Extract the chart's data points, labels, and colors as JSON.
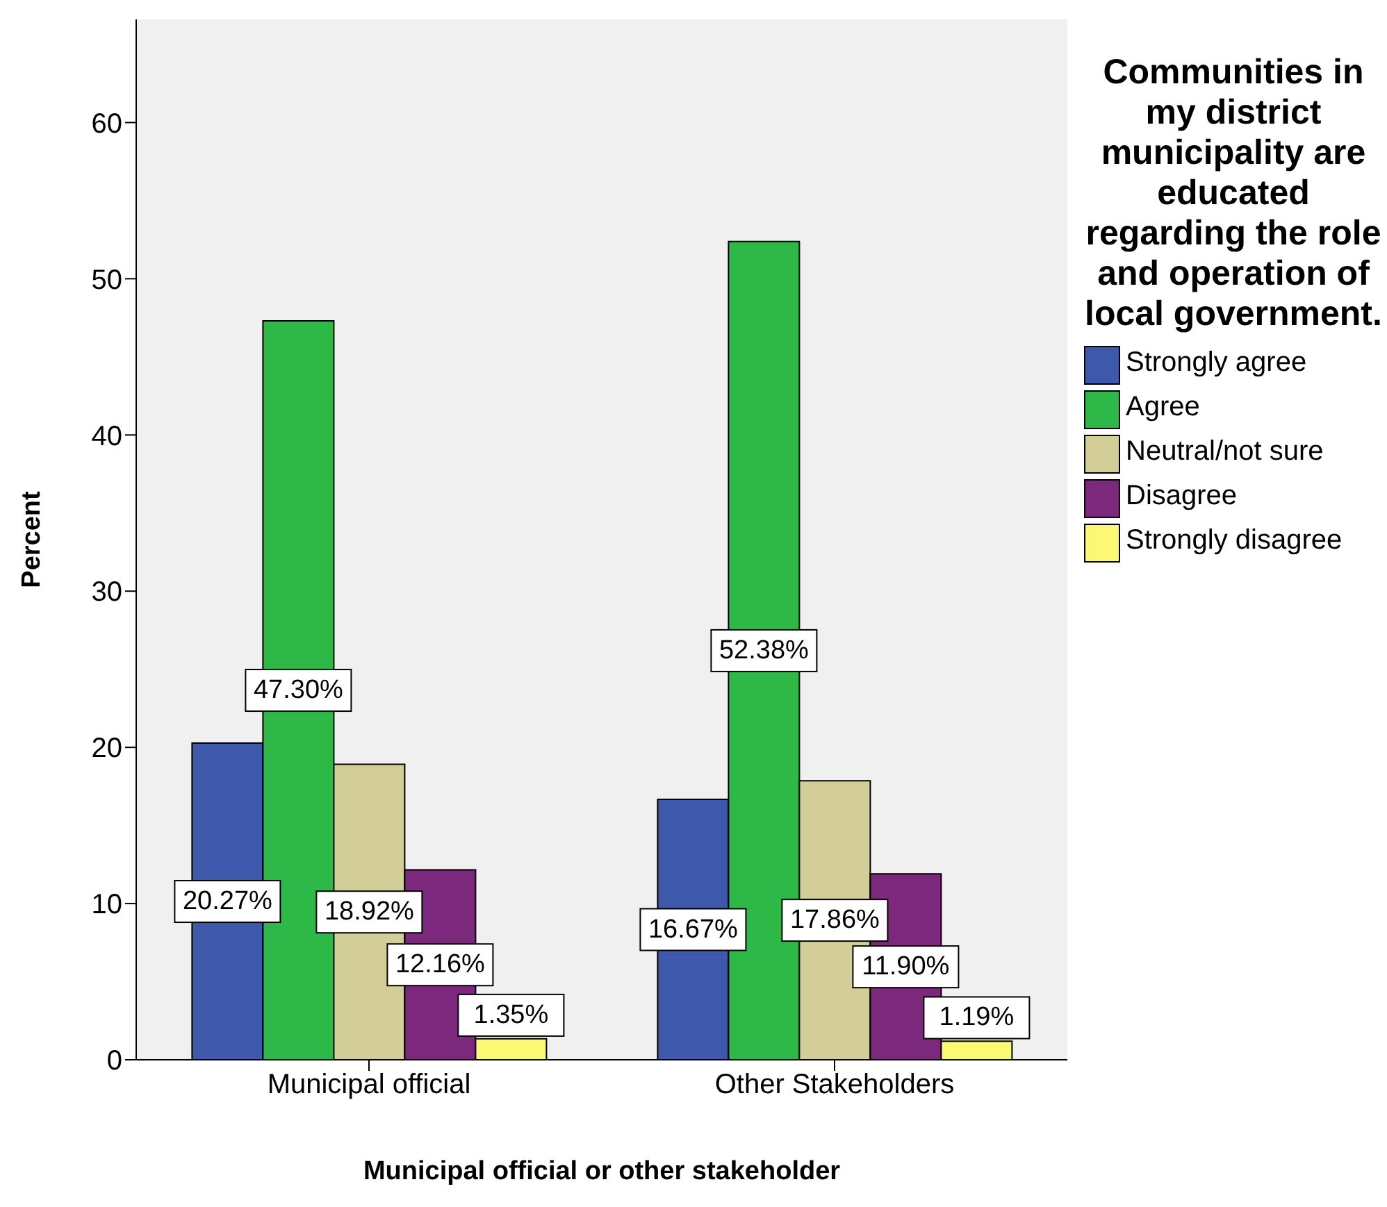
{
  "chart_data": {
    "type": "bar",
    "xlabel": "Municipal official or other stakeholder",
    "ylabel": "Percent",
    "legend_title": "Communities in my district municipality are educated regarding the role and operation of local government.",
    "categories": [
      "Municipal official",
      "Other Stakeholders"
    ],
    "series": [
      {
        "name": "Strongly agree",
        "color": "#3e58ac",
        "values": [
          20.27,
          16.67
        ],
        "value_labels": [
          "20.27%",
          "16.67%"
        ]
      },
      {
        "name": "Agree",
        "color": "#2eb848",
        "values": [
          47.3,
          52.38
        ],
        "value_labels": [
          "47.30%",
          "52.38%"
        ]
      },
      {
        "name": "Neutral/not sure",
        "color": "#d3ce97",
        "values": [
          18.92,
          17.86
        ],
        "value_labels": [
          "18.92%",
          "17.86%"
        ]
      },
      {
        "name": "Disagree",
        "color": "#7c287c",
        "values": [
          12.16,
          11.9
        ],
        "value_labels": [
          "12.16%",
          "11.90%"
        ]
      },
      {
        "name": "Strongly disagree",
        "color": "#fbf873",
        "values": [
          1.35,
          1.19
        ],
        "value_labels": [
          "1.35%",
          "1.19%"
        ]
      }
    ],
    "ylim": [
      0,
      66.6
    ],
    "yticks": [
      0,
      10,
      20,
      30,
      40,
      50,
      60
    ],
    "grid": false,
    "legend": "right"
  }
}
